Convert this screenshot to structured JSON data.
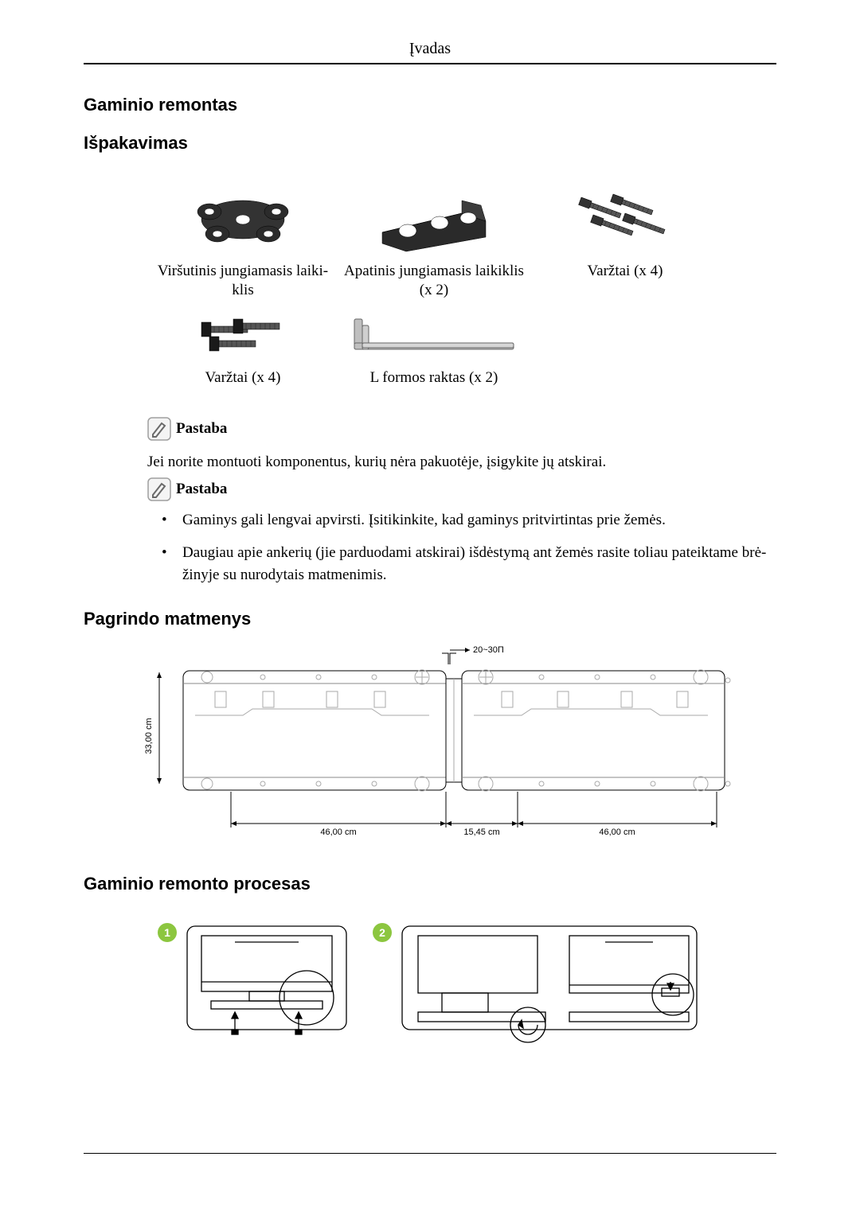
{
  "header": {
    "title": "Įvadas"
  },
  "sections": {
    "repair": "Gaminio remontas",
    "unpack": "Išpakavimas",
    "base_dims": "Pagrindo matmenys",
    "repair_process": "Gaminio remonto procesas"
  },
  "parts": {
    "upper_bracket": "Viršutinis jungiamasis laiki-\nklis",
    "lower_bracket": "Apatinis jungiamasis laikiklis\n(x 2)",
    "screws_a": "Varžtai (x 4)",
    "screws_b": "Varžtai (x 4)",
    "lkey": "L formos raktas (x 2)"
  },
  "notes": {
    "label": "Pastaba",
    "text1": "Jei norite montuoti komponentus, kurių nėra pakuotėje, įsigykite jų atskirai.",
    "bullet1": "Gaminys gali lengvai apvirsti. Įsitikinkite, kad gaminys pritvirtintas prie žemės.",
    "bullet2": "Daugiau apie ankerių (jie parduodami atskirai) išdėstymą ant žemės rasite toliau pateiktame brė-\nžinyje su nurodytais matmenimis."
  },
  "diagram": {
    "gap_label": "20~30Π",
    "height_label": "33,00 cm",
    "w_left": "46,00 cm",
    "w_mid": "15,45 cm",
    "w_right": "46,00 cm",
    "colors": {
      "line": "#000000",
      "fill": "#ffffff",
      "light": "#9e9e9e"
    }
  },
  "process": {
    "step1": "1",
    "step2": "2",
    "badge_bg": "#8cc63f",
    "badge_fg": "#ffffff"
  },
  "icons": {
    "part_fill": "#3a3a3a",
    "part_shine": "#888888",
    "note_border": "#9f9f9f",
    "note_fill": "#f4f4f4",
    "note_stroke": "#6a6a6a"
  }
}
